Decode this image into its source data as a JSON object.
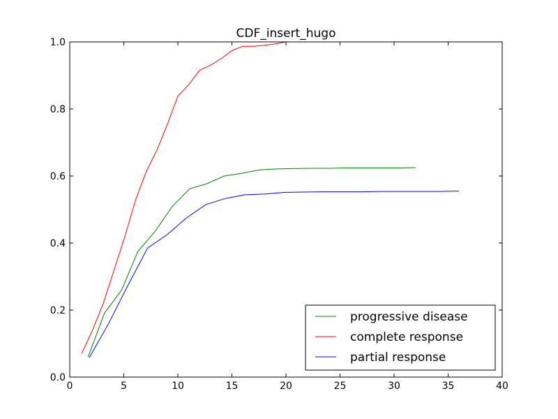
{
  "chart_data": {
    "type": "line",
    "title": "CDF_insert_hugo",
    "xlabel": "",
    "ylabel": "",
    "xlim": [
      0,
      40
    ],
    "ylim": [
      0.0,
      1.0
    ],
    "x_ticks": [
      "0",
      "5",
      "10",
      "15",
      "20",
      "25",
      "30",
      "35",
      "40"
    ],
    "y_ticks": [
      "0.0",
      "0.2",
      "0.4",
      "0.6",
      "0.8",
      "1.0"
    ],
    "grid": false,
    "legend_position": "lower-right",
    "series": [
      {
        "name": "progressive disease",
        "color": "#008000",
        "points": [
          [
            1.7,
            0.06
          ],
          [
            3.2,
            0.19
          ],
          [
            4.8,
            0.26
          ],
          [
            6.3,
            0.375
          ],
          [
            7.9,
            0.435
          ],
          [
            9.5,
            0.51
          ],
          [
            11.1,
            0.562
          ],
          [
            12.7,
            0.577
          ],
          [
            14.3,
            0.6
          ],
          [
            15.9,
            0.608
          ],
          [
            17.5,
            0.618
          ],
          [
            19.1,
            0.621
          ],
          [
            20.7,
            0.622
          ],
          [
            22.3,
            0.623
          ],
          [
            23.9,
            0.623
          ],
          [
            25.5,
            0.624
          ],
          [
            27.1,
            0.624
          ],
          [
            28.7,
            0.624
          ],
          [
            30.3,
            0.624
          ],
          [
            32.0,
            0.625
          ]
        ]
      },
      {
        "name": "complete response",
        "color": "#ff0000",
        "points": [
          [
            1.1,
            0.07
          ],
          [
            2.1,
            0.14
          ],
          [
            3.1,
            0.22
          ],
          [
            4.1,
            0.32
          ],
          [
            5.1,
            0.42
          ],
          [
            6.1,
            0.53
          ],
          [
            7.1,
            0.615
          ],
          [
            8.1,
            0.68
          ],
          [
            9.1,
            0.76
          ],
          [
            10.0,
            0.838
          ],
          [
            11.0,
            0.872
          ],
          [
            12.0,
            0.915
          ],
          [
            13.0,
            0.93
          ],
          [
            14.0,
            0.95
          ],
          [
            15.0,
            0.974
          ],
          [
            16.0,
            0.987
          ],
          [
            17.0,
            0.987
          ],
          [
            18.0,
            0.99
          ],
          [
            19.0,
            0.994
          ],
          [
            20.0,
            1.0
          ]
        ]
      },
      {
        "name": "partial response",
        "color": "#0000ff",
        "points": [
          [
            1.8,
            0.058
          ],
          [
            3.6,
            0.16
          ],
          [
            5.4,
            0.275
          ],
          [
            7.2,
            0.385
          ],
          [
            9.0,
            0.425
          ],
          [
            10.8,
            0.475
          ],
          [
            12.6,
            0.515
          ],
          [
            14.4,
            0.533
          ],
          [
            16.2,
            0.544
          ],
          [
            18.0,
            0.546
          ],
          [
            19.8,
            0.551
          ],
          [
            21.6,
            0.552
          ],
          [
            23.4,
            0.553
          ],
          [
            25.2,
            0.553
          ],
          [
            27.0,
            0.553
          ],
          [
            28.8,
            0.554
          ],
          [
            30.6,
            0.554
          ],
          [
            32.4,
            0.554
          ],
          [
            34.2,
            0.554
          ],
          [
            36.0,
            0.555
          ]
        ]
      }
    ]
  }
}
